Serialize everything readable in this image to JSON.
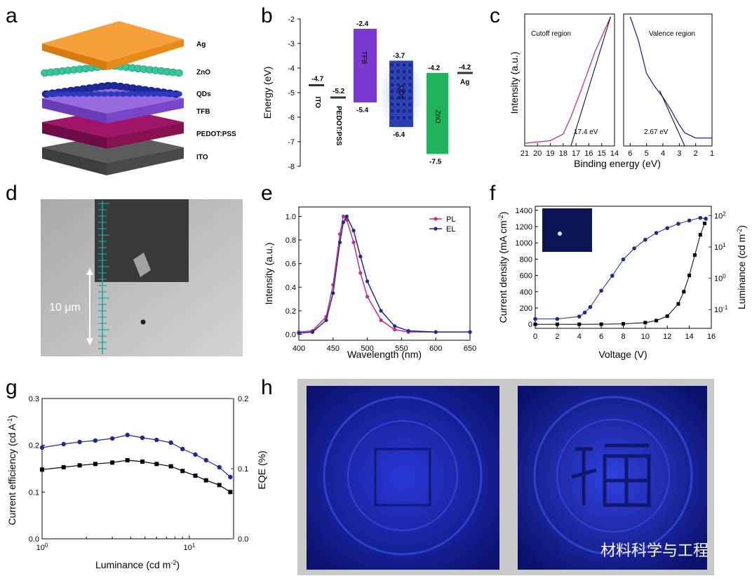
{
  "panel_letters": [
    "a",
    "b",
    "c",
    "d",
    "e",
    "f",
    "g",
    "h"
  ],
  "colors": {
    "magenta": "#c0308a",
    "navy": "#1f2a8c",
    "blue_fill": "#2a3fb0",
    "green": "#21b35c",
    "purple": "#7a3ad1",
    "orange": "#f59a2b",
    "teal": "#2ab48a",
    "maroon": "#86124f",
    "gray": "#5c5c5c",
    "black": "#000000"
  },
  "panel_a": {
    "layers": [
      "Ag",
      "ZnO",
      "QDs",
      "TFB",
      "PEDOT:PSS",
      "ITO"
    ]
  },
  "panel_b": {
    "ylabel": "Energy (eV)",
    "yticks": [
      "-2",
      "-3",
      "-4",
      "-5",
      "-6",
      "-7",
      "-8"
    ],
    "levels": [
      {
        "name": "ITO",
        "top": "-4.7"
      },
      {
        "name": "PEDOT:PSS",
        "top": "-5.2"
      },
      {
        "name": "TFB",
        "top": "-2.4",
        "bottom": "-5.4"
      },
      {
        "name": "QDs",
        "top": "-3.7",
        "bottom": "-6.4"
      },
      {
        "name": "ZnO",
        "top": "-4.2",
        "bottom": "-7.5"
      },
      {
        "name": "Ag",
        "top": "-4.2"
      }
    ]
  },
  "panel_c": {
    "ylabel": "Intensity (a.u.)",
    "xlabel": "Binding energy (eV)",
    "left_title": "Cutoff region",
    "right_title": "Valence region",
    "left_ticks": [
      "21",
      "20",
      "19",
      "18",
      "17",
      "16",
      "15",
      "14"
    ],
    "right_ticks": [
      "6",
      "5",
      "4",
      "3",
      "2",
      "1"
    ],
    "cutoff_value": "17.4 eV",
    "valence_value": "2.67 eV"
  },
  "panel_d": {
    "scale_label": "10 μm"
  },
  "panel_e": {
    "xlabel": "Wavelength (nm)",
    "ylabel": "Intensity (a.u.)",
    "xticks": [
      "400",
      "450",
      "500",
      "550",
      "600",
      "650"
    ],
    "yticks": [
      "0.0",
      "0.2",
      "0.4",
      "0.6",
      "0.8",
      "1.0"
    ],
    "legend": [
      "PL",
      "EL"
    ]
  },
  "panel_f": {
    "xlabel": "Voltage (V)",
    "ylabel_left": "Current density (mA cm",
    "ylabel_right": "Luminance (cd m",
    "xticks": [
      "0",
      "2",
      "4",
      "6",
      "8",
      "10",
      "12",
      "14",
      "16"
    ],
    "yticks_left": [
      "0",
      "200",
      "400",
      "600",
      "800",
      "1000",
      "1200",
      "1400"
    ],
    "yticks_right": [
      "10",
      "10",
      "10",
      "10"
    ],
    "yticks_right_exp": [
      "-1",
      "0",
      "1",
      "2"
    ]
  },
  "panel_g": {
    "xlabel": "Luminance (cd m",
    "ylabel_left": "Current efficiency (cd A",
    "ylabel_right": "EQE (%)",
    "yticks_left": [
      "0.0",
      "0.1",
      "0.2",
      "0.3"
    ],
    "yticks_right": [
      "0.0",
      "0.1",
      "0.2"
    ],
    "xticks": [
      "10",
      "10"
    ],
    "xticks_exp": [
      "0",
      "1"
    ]
  },
  "watermark": "材料科学与工程",
  "chart_data": [
    {
      "panel": "b",
      "type": "bar",
      "title": "",
      "ylabel": "Energy (eV)",
      "ylim": [
        -8,
        -2
      ],
      "categories": [
        "ITO",
        "PEDOT:PSS",
        "TFB",
        "QDs",
        "ZnO",
        "Ag"
      ],
      "series": [
        {
          "name": "top",
          "values": [
            -4.7,
            -5.2,
            -2.4,
            -3.7,
            -4.2,
            -4.2
          ]
        },
        {
          "name": "bottom",
          "values": [
            null,
            null,
            -5.4,
            -6.4,
            -7.5,
            null
          ]
        }
      ]
    },
    {
      "panel": "c",
      "type": "line",
      "xlabel": "Binding energy (eV)",
      "ylabel": "Intensity (a.u.)",
      "series": [
        {
          "name": "Cutoff region",
          "x": [
            21,
            19,
            18,
            17.4,
            16.5,
            15.5,
            14.3
          ],
          "y": [
            0.02,
            0.04,
            0.09,
            0.22,
            0.45,
            0.72,
            0.98
          ]
        },
        {
          "name": "Valence region",
          "x": [
            6,
            5.5,
            5,
            4.5,
            4,
            3.5,
            3,
            2.67,
            2,
            1
          ],
          "y": [
            0.98,
            0.8,
            0.55,
            0.45,
            0.37,
            0.27,
            0.16,
            0.1,
            0.06,
            0.06
          ]
        }
      ]
    },
    {
      "panel": "e",
      "type": "line",
      "xlabel": "Wavelength (nm)",
      "ylabel": "Intensity (a.u.)",
      "xlim": [
        400,
        650
      ],
      "ylim": [
        -0.05,
        1.08
      ],
      "series": [
        {
          "name": "PL",
          "x": [
            400,
            420,
            440,
            450,
            460,
            465,
            470,
            480,
            490,
            500,
            520,
            540,
            560,
            600,
            650
          ],
          "y": [
            0.02,
            0.03,
            0.15,
            0.42,
            0.85,
            1.0,
            0.97,
            0.78,
            0.52,
            0.32,
            0.12,
            0.04,
            0.02,
            0.02,
            0.02
          ]
        },
        {
          "name": "EL",
          "x": [
            400,
            420,
            440,
            450,
            460,
            465,
            470,
            480,
            490,
            500,
            520,
            540,
            560,
            600,
            650
          ],
          "y": [
            0.01,
            0.02,
            0.12,
            0.35,
            0.78,
            0.95,
            1.0,
            0.88,
            0.66,
            0.45,
            0.2,
            0.07,
            0.03,
            0.02,
            0.02
          ]
        }
      ]
    },
    {
      "panel": "f",
      "type": "scatter",
      "xlabel": "Voltage (V)",
      "xlim": [
        0,
        16
      ],
      "series": [
        {
          "name": "Current density",
          "x": [
            0,
            2,
            4,
            6,
            8,
            10,
            11,
            12,
            13,
            13.5,
            14,
            14.5,
            15,
            15.4
          ],
          "y": [
            0,
            0,
            0,
            1,
            5,
            20,
            45,
            100,
            250,
            400,
            600,
            850,
            1100,
            1240
          ]
        },
        {
          "name": "Luminance",
          "x": [
            0,
            2,
            4,
            4.5,
            5,
            6,
            7,
            8,
            9,
            10,
            11,
            12,
            13,
            14,
            15,
            15.5
          ],
          "y": [
            0.05,
            0.05,
            0.06,
            0.08,
            0.12,
            0.4,
            1.2,
            4,
            9,
            17,
            28,
            40,
            55,
            70,
            85,
            80
          ]
        }
      ]
    },
    {
      "panel": "g",
      "type": "line",
      "xlabel": "Luminance (cd m-2)",
      "xlim": [
        1,
        20
      ],
      "series": [
        {
          "name": "Current efficiency",
          "x": [
            1,
            1.4,
            1.8,
            2.3,
            3,
            3.8,
            4.8,
            6,
            7.5,
            9,
            11,
            13,
            16,
            19
          ],
          "y": [
            0.148,
            0.153,
            0.157,
            0.16,
            0.163,
            0.168,
            0.165,
            0.16,
            0.155,
            0.145,
            0.135,
            0.125,
            0.115,
            0.1
          ]
        },
        {
          "name": "EQE",
          "x": [
            1,
            1.4,
            1.8,
            2.3,
            3,
            3.8,
            4.8,
            6,
            7.5,
            9,
            11,
            13,
            16,
            19
          ],
          "y": [
            0.13,
            0.135,
            0.138,
            0.14,
            0.143,
            0.148,
            0.144,
            0.141,
            0.137,
            0.128,
            0.12,
            0.112,
            0.102,
            0.088
          ]
        }
      ]
    }
  ]
}
